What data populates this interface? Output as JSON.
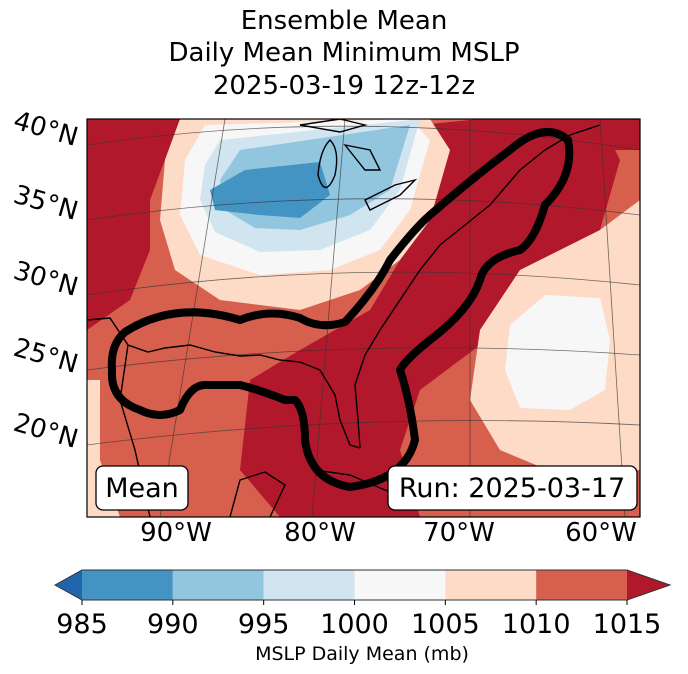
{
  "chart_data": {
    "type": "heatmap",
    "subtype": "filled-contour map (Lambert conformal projection)",
    "title": [
      "Ensemble Mean",
      "Daily Mean Minimum MSLP",
      "2025-03-19 12z-12z"
    ],
    "region": "Eastern North America / Gulf of Mexico / Western Atlantic",
    "lat_ticks": [
      "40°N",
      "35°N",
      "30°N",
      "25°N",
      "20°N"
    ],
    "lon_ticks": [
      "90°W",
      "80°W",
      "70°W",
      "60°W"
    ],
    "gridlines": true,
    "coastlines": true,
    "annotations": {
      "left_box": "Mean",
      "right_box": "Run: 2025-03-17"
    },
    "colorbar": {
      "label": "MSLP Daily Mean (mb)",
      "orientation": "horizontal",
      "position": "bottom",
      "extend": "both",
      "boundaries": [
        985,
        990,
        995,
        1000,
        1005,
        1010,
        1015
      ],
      "tick_labels": [
        "985",
        "990",
        "995",
        "1000",
        "1005",
        "1010",
        "1015"
      ],
      "colors": {
        "under": "#2166ac",
        "985-990": "#4393c3",
        "990-995": "#92c5de",
        "995-1000": "#d1e5f0",
        "1000-1005": "#f7f7f7",
        "1005-1010": "#fddbc7",
        "1010-1015": "#d6604d",
        "over": "#b2182b"
      }
    },
    "features": [
      {
        "name": "low-pressure center",
        "location": "Upper Midwest / west of Great Lakes",
        "min_range_mb": "985-990"
      },
      {
        "name": "high-pressure ridge",
        "location": "Appalachians / US East Coast to Atlantic Canada",
        "range_mb": ">1015"
      },
      {
        "name": "weak low",
        "location": "Western Atlantic near 25-30°N, 60-65°W",
        "range_mb": "1000-1005"
      },
      {
        "name": "highlighted contour",
        "description": "thick black outline enclosing Gulf coast and East Coast ridge"
      }
    ]
  },
  "labels": {
    "title_line1": "Ensemble Mean",
    "title_line2": "Daily Mean Minimum MSLP",
    "title_line3": "2025-03-19 12z-12z"
  }
}
